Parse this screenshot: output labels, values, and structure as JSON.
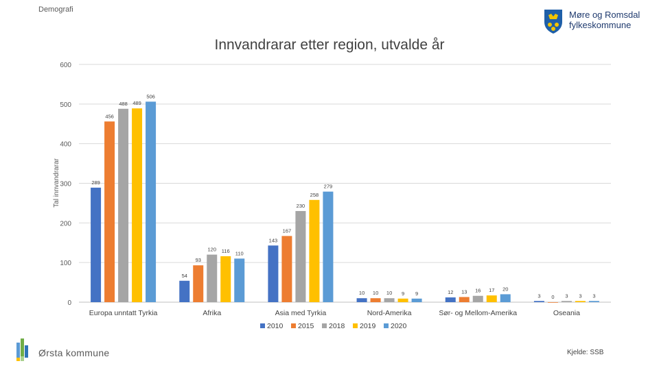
{
  "header": {
    "section": "Demografi",
    "logo_line1": "Møre og Romsdal",
    "logo_line2": "fylkeskommune"
  },
  "footer": {
    "org": "Ørsta kommune",
    "source": "Kjelde: SSB"
  },
  "colors": {
    "2010": "#4472c4",
    "2015": "#ed7d31",
    "2018": "#a5a5a5",
    "2019": "#ffc000",
    "2020": "#5b9bd5"
  },
  "chart_data": {
    "type": "bar",
    "title": "Innvandrarar etter region, utvalde år",
    "xlabel": "",
    "ylabel": "Tal innvandrarar",
    "ylim": [
      0,
      600
    ],
    "yticks": [
      0,
      100,
      200,
      300,
      400,
      500,
      600
    ],
    "grid": true,
    "legend_position": "bottom",
    "categories": [
      "Europa unntatt Tyrkia",
      "Afrika",
      "Asia med Tyrkia",
      "Nord-Amerika",
      "Sør- og Mellom-Amerika",
      "Oseania"
    ],
    "series": [
      {
        "name": "2010",
        "values": [
          289,
          54,
          143,
          10,
          12,
          3
        ]
      },
      {
        "name": "2015",
        "values": [
          456,
          93,
          167,
          10,
          13,
          0
        ]
      },
      {
        "name": "2018",
        "values": [
          488,
          120,
          230,
          10,
          16,
          3
        ]
      },
      {
        "name": "2019",
        "values": [
          489,
          116,
          258,
          9,
          17,
          3
        ]
      },
      {
        "name": "2020",
        "values": [
          506,
          110,
          279,
          9,
          20,
          3
        ]
      }
    ]
  }
}
